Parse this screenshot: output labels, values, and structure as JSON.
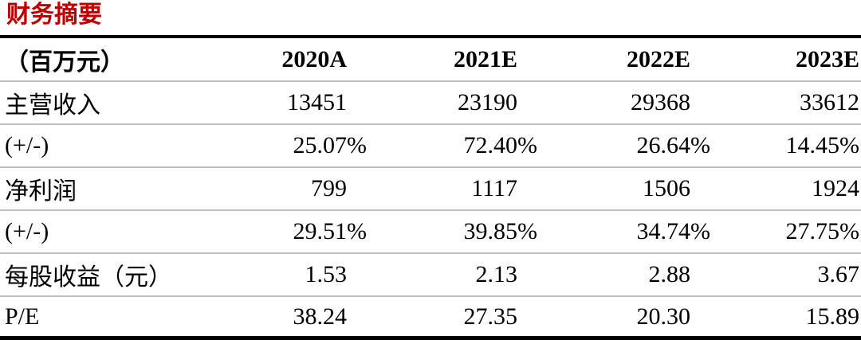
{
  "title": "财务摘要",
  "colors": {
    "title": "#c00000",
    "thin_line": "#bfbfbf",
    "thick_line": "#000000"
  },
  "table": {
    "header": [
      "（百万元）",
      "2020A",
      "2021E",
      "2022E",
      "2023E"
    ],
    "rows": [
      [
        "主营收入",
        "13451",
        "23190",
        "29368",
        "33612"
      ],
      [
        "(+/-)",
        "25.07%",
        "72.40%",
        "26.64%",
        "14.45%"
      ],
      [
        "净利润",
        "799",
        "1117",
        "1506",
        "1924"
      ],
      [
        "(+/-)",
        "29.51%",
        "39.85%",
        "34.74%",
        "27.75%"
      ],
      [
        "每股收益（元）",
        "1.53",
        "2.13",
        "2.88",
        "3.67"
      ],
      [
        "P/E",
        "38.24",
        "27.35",
        "20.30",
        "15.89"
      ]
    ]
  },
  "chart_data": {
    "type": "table",
    "title": "财务摘要",
    "unit_label": "（百万元）",
    "columns": [
      "2020A",
      "2021E",
      "2022E",
      "2023E"
    ],
    "series": [
      {
        "name": "主营收入",
        "values": [
          13451,
          23190,
          29368,
          33612
        ]
      },
      {
        "name": "主营收入(+/-)",
        "values": [
          "25.07%",
          "72.40%",
          "26.64%",
          "14.45%"
        ]
      },
      {
        "name": "净利润",
        "values": [
          799,
          1117,
          1506,
          1924
        ]
      },
      {
        "name": "净利润(+/-)",
        "values": [
          "29.51%",
          "39.85%",
          "34.74%",
          "27.75%"
        ]
      },
      {
        "name": "每股收益（元）",
        "values": [
          1.53,
          2.13,
          2.88,
          3.67
        ]
      },
      {
        "name": "P/E",
        "values": [
          38.24,
          27.35,
          20.3,
          15.89
        ]
      }
    ]
  }
}
